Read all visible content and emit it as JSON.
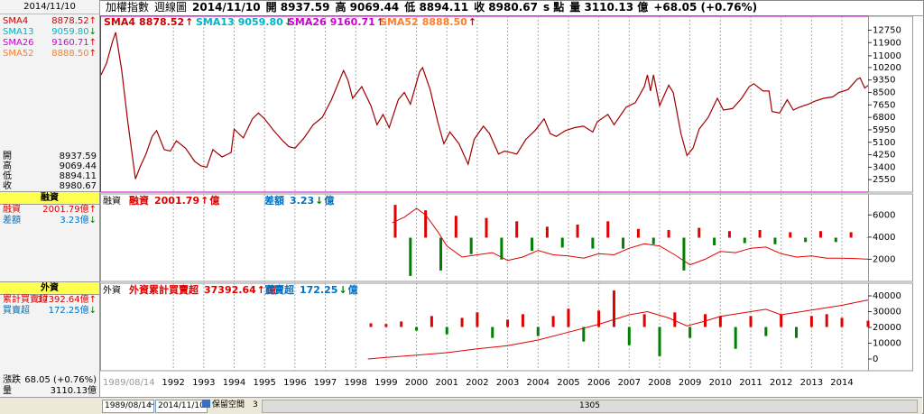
{
  "sidebar": {
    "date": "2014/11/10",
    "sma": [
      {
        "name": "SMA4",
        "value": "8878.52",
        "arrow": "↑",
        "color": "#d00000",
        "arrow_color": "#e00000"
      },
      {
        "name": "SMA13",
        "value": "9059.80",
        "arrow": "↓",
        "color": "#00b4c8",
        "arrow_color": "#008000"
      },
      {
        "name": "SMA26",
        "value": "9160.71",
        "arrow": "↑",
        "color": "#d000d0",
        "arrow_color": "#e00000"
      },
      {
        "name": "SMA52",
        "value": "8888.50",
        "arrow": "↑",
        "color": "#ff7f27",
        "arrow_color": "#e00000"
      }
    ],
    "quote": [
      {
        "label": "開",
        "value": "8937.59"
      },
      {
        "label": "高",
        "value": "9069.44"
      },
      {
        "label": "低",
        "value": "8894.11"
      },
      {
        "label": "收",
        "value": "8980.67"
      }
    ],
    "margin": {
      "title": "融資",
      "rows": [
        {
          "label": "融資",
          "value": "2001.79",
          "unit": "億",
          "arrow": "↑",
          "color": "#e00000",
          "arrow_color": "#e00000"
        },
        {
          "label": "差額",
          "value": "3.23",
          "unit": "億",
          "arrow": "↓",
          "color": "#0070c0",
          "arrow_color": "#008000"
        }
      ]
    },
    "foreign": {
      "title": "外資",
      "rows": [
        {
          "label": "累計買賣超",
          "value": "37392.64",
          "unit": "億",
          "arrow": "↑",
          "color": "#e00000",
          "arrow_color": "#e00000"
        },
        {
          "label": "買賣超",
          "value": "172.25",
          "unit": "億",
          "arrow": "↓",
          "color": "#0070c0",
          "arrow_color": "#008000"
        }
      ]
    },
    "summary": [
      {
        "label": "漲跌",
        "value": "68.05 (+0.76%)"
      },
      {
        "label": "量",
        "value": "3110.13億"
      }
    ]
  },
  "header": {
    "items": [
      "加權指數",
      "週線圖",
      "2014/11/10",
      "開 8937.59",
      "高 9069.44",
      "低 8894.11",
      "收 8980.67",
      "s 點",
      "量 3110.13 億",
      "+68.05 (+0.76%)"
    ]
  },
  "toolbar": {
    "start": "1989/08/14",
    "separator": "~",
    "end": "2014/11/10",
    "button": "保留空間",
    "count": "3",
    "scroll": "1305"
  },
  "chart_data": [
    {
      "type": "line",
      "xlim": [
        1989.62,
        2014.86
      ],
      "ylim": [
        1700,
        13700
      ],
      "yticks": [
        2550,
        3400,
        4250,
        5100,
        5950,
        6800,
        7650,
        8500,
        9350,
        10200,
        11000,
        11900,
        12750
      ],
      "series": [
        {
          "name": "加權指數",
          "type": "line",
          "color": "#a00000",
          "x": [
            1989.62,
            1989.8,
            1990.0,
            1990.1,
            1990.3,
            1990.5,
            1990.75,
            1990.9,
            1991.1,
            1991.3,
            1991.45,
            1991.7,
            1991.9,
            1992.1,
            1992.4,
            1992.7,
            1992.9,
            1993.1,
            1993.3,
            1993.6,
            1993.9,
            1994.0,
            1994.3,
            1994.6,
            1994.8,
            1995.0,
            1995.3,
            1995.6,
            1995.8,
            1996.0,
            1996.3,
            1996.6,
            1996.9,
            1997.2,
            1997.6,
            1997.75,
            1997.9,
            1998.2,
            1998.5,
            1998.7,
            1998.9,
            1999.1,
            1999.4,
            1999.6,
            1999.8,
            2000.1,
            2000.2,
            2000.45,
            2000.7,
            2000.9,
            2001.1,
            2001.4,
            2001.7,
            2001.9,
            2002.2,
            2002.4,
            2002.7,
            2002.9,
            2003.1,
            2003.3,
            2003.6,
            2003.9,
            2004.2,
            2004.4,
            2004.6,
            2004.9,
            2005.2,
            2005.5,
            2005.8,
            2005.95,
            2006.3,
            2006.5,
            2006.9,
            2007.2,
            2007.5,
            2007.6,
            2007.7,
            2007.8,
            2008.0,
            2008.3,
            2008.45,
            2008.7,
            2008.9,
            2009.1,
            2009.3,
            2009.6,
            2009.9,
            2010.1,
            2010.4,
            2010.7,
            2010.95,
            2011.1,
            2011.4,
            2011.6,
            2011.7,
            2011.95,
            2012.2,
            2012.4,
            2012.6,
            2012.9,
            2013.1,
            2013.4,
            2013.7,
            2013.9,
            2014.2,
            2014.5,
            2014.6,
            2014.75,
            2014.86
          ],
          "values": [
            9700,
            10500,
            12000,
            12600,
            10000,
            6500,
            2600,
            3400,
            4300,
            5500,
            5900,
            4600,
            4500,
            5200,
            4700,
            3800,
            3500,
            3400,
            4600,
            4100,
            4400,
            6000,
            5400,
            6700,
            7100,
            6700,
            5900,
            5200,
            4800,
            4700,
            5400,
            6300,
            6800,
            8000,
            10000,
            9300,
            8100,
            8900,
            7600,
            6300,
            7000,
            6100,
            8000,
            8500,
            7700,
            9900,
            10200,
            8700,
            6500,
            5000,
            5800,
            5000,
            3600,
            5300,
            6200,
            5700,
            4300,
            4500,
            4400,
            4300,
            5300,
            5900,
            6700,
            5700,
            5500,
            5900,
            6100,
            6200,
            5800,
            6500,
            7000,
            6300,
            7500,
            7800,
            8900,
            9700,
            8600,
            9700,
            7600,
            9000,
            8500,
            5700,
            4200,
            4700,
            6000,
            6800,
            8100,
            7300,
            7400,
            8100,
            8900,
            9100,
            8600,
            8600,
            7200,
            7100,
            8000,
            7300,
            7500,
            7700,
            7900,
            8100,
            8200,
            8500,
            8700,
            9400,
            9500,
            8800,
            8980.67
          ]
        }
      ]
    },
    {
      "type": "combo",
      "title": "融資",
      "xlim": [
        1989.62,
        2014.86
      ],
      "ylim": [
        0,
        7900
      ],
      "yticks": [
        2000,
        4000,
        6000
      ],
      "y2lim": [
        -400,
        400
      ],
      "series": [
        {
          "name": "融資",
          "type": "line",
          "color": "#e00000",
          "x": [
            1999.2,
            1999.6,
            2000.0,
            2000.3,
            2000.7,
            2001.0,
            2001.5,
            2002.0,
            2002.5,
            2003.0,
            2003.5,
            2004.0,
            2004.5,
            2005.0,
            2005.5,
            2006.0,
            2006.5,
            2007.0,
            2007.5,
            2008.0,
            2008.5,
            2009.0,
            2009.5,
            2010.0,
            2010.5,
            2011.0,
            2011.5,
            2012.0,
            2012.5,
            2013.0,
            2013.5,
            2014.0,
            2014.5,
            2014.86
          ],
          "values": [
            5300,
            5800,
            6600,
            6000,
            4500,
            3200,
            2200,
            2400,
            2600,
            1900,
            2200,
            2800,
            2400,
            2300,
            2100,
            2500,
            2400,
            3000,
            3400,
            3200,
            2400,
            1500,
            2000,
            2700,
            2600,
            3000,
            3100,
            2500,
            2200,
            2300,
            2100,
            2100,
            2050,
            2001.79
          ]
        },
        {
          "name": "差額",
          "type": "bar",
          "axis": "y2",
          "color": "#0070c0",
          "up_color": "#e00000",
          "down_color": "#008000",
          "x": [
            1999.3,
            1999.8,
            2000.3,
            2000.8,
            2001.3,
            2001.8,
            2002.3,
            2002.8,
            2003.3,
            2003.8,
            2004.3,
            2004.8,
            2005.3,
            2005.8,
            2006.3,
            2006.8,
            2007.3,
            2007.8,
            2008.3,
            2008.8,
            2009.3,
            2009.8,
            2010.3,
            2010.8,
            2011.3,
            2011.8,
            2012.3,
            2012.8,
            2013.3,
            2013.8,
            2014.3,
            2014.86
          ],
          "values": [
            300,
            -350,
            250,
            -300,
            200,
            -150,
            180,
            -200,
            150,
            -120,
            100,
            -90,
            120,
            -100,
            150,
            -100,
            80,
            -60,
            70,
            -300,
            90,
            -70,
            60,
            -50,
            70,
            -60,
            50,
            -40,
            60,
            -40,
            50,
            3.23
          ]
        }
      ]
    },
    {
      "type": "combo",
      "title": "外資",
      "xlim": [
        1989.62,
        2014.86
      ],
      "ylim": [
        -7400,
        48000
      ],
      "yticks": [
        0,
        10000,
        20000,
        30000,
        40000
      ],
      "y2lim": [
        -1200,
        1200
      ],
      "xticks": [
        {
          "value": 1989.62,
          "label": "1989/08/14"
        },
        1992,
        1993,
        1994,
        1995,
        1996,
        1997,
        1998,
        1999,
        2000,
        2001,
        2002,
        2003,
        2004,
        2005,
        2006,
        2007,
        2008,
        2009,
        2010,
        2011,
        2012,
        2013,
        2014
      ],
      "grid": "x",
      "series": [
        {
          "name": "外資累計買賣超",
          "type": "line",
          "color": "#e00000",
          "x": [
            1998.4,
            1999,
            2000,
            2001,
            2002,
            2003,
            2004,
            2005,
            2006,
            2007,
            2007.6,
            2008.3,
            2008.9,
            2009.5,
            2010,
            2011,
            2011.5,
            2012,
            2013,
            2014,
            2014.5,
            2014.86
          ],
          "values": [
            0,
            1000,
            2500,
            4000,
            6500,
            8500,
            12000,
            17000,
            22000,
            28000,
            30000,
            26000,
            21000,
            24000,
            27000,
            30000,
            31500,
            28000,
            31000,
            34000,
            36000,
            37392.64
          ]
        },
        {
          "name": "買賣超",
          "type": "bar",
          "axis": "y2",
          "color": "#0070c0",
          "up_color": "#e00000",
          "down_color": "#008000",
          "x": [
            1998.5,
            1999,
            1999.5,
            2000,
            2000.5,
            2001,
            2001.5,
            2002,
            2002.5,
            2003,
            2003.5,
            2004,
            2004.5,
            2005,
            2005.5,
            2006,
            2006.5,
            2007,
            2007.5,
            2008,
            2008.5,
            2009,
            2009.5,
            2010,
            2010.5,
            2011,
            2011.5,
            2012,
            2012.5,
            2013,
            2013.5,
            2014,
            2014.86
          ],
          "values": [
            100,
            80,
            150,
            -100,
            300,
            -200,
            250,
            400,
            -300,
            200,
            350,
            -250,
            300,
            500,
            -400,
            450,
            1000,
            -500,
            350,
            -800,
            400,
            -300,
            350,
            300,
            -600,
            300,
            -250,
            350,
            -300,
            300,
            350,
            250,
            172.25
          ]
        }
      ]
    }
  ]
}
